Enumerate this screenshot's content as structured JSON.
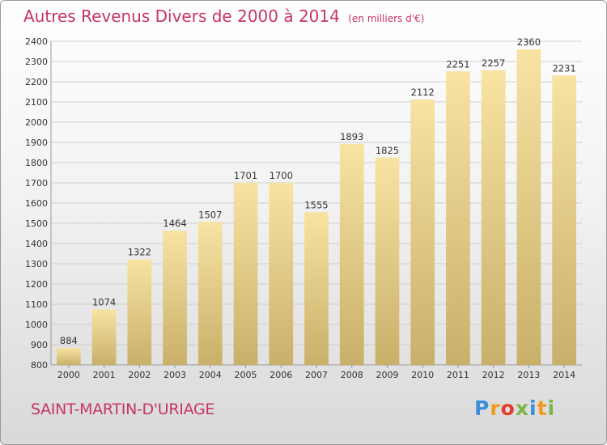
{
  "header": {
    "title": "Autres Revenus Divers de 2000 à 2014",
    "subtitle": "(en milliers d'€)"
  },
  "footer": {
    "location": "SAINT-MARTIN-D'URIAGE",
    "brand": {
      "letters": [
        "P",
        "r",
        "o",
        "x",
        "i",
        "t",
        "i"
      ],
      "colors": [
        "#3a8fd8",
        "#f39a1e",
        "#e53b2c",
        "#7ab648",
        "#3a8fd8",
        "#f39a1e",
        "#7ab648"
      ]
    }
  },
  "colors": {
    "title": "#c8336a",
    "bar_top": "#f8e3a3",
    "bar_bottom": "#c9b06a",
    "grid": "#cfcfcf",
    "axis_text": "#333333"
  },
  "chart_data": {
    "type": "bar",
    "categories": [
      "2000",
      "2001",
      "2002",
      "2003",
      "2004",
      "2005",
      "2006",
      "2007",
      "2008",
      "2009",
      "2010",
      "2011",
      "2012",
      "2013",
      "2014"
    ],
    "values": [
      884,
      1074,
      1322,
      1464,
      1507,
      1701,
      1700,
      1555,
      1893,
      1825,
      2112,
      2251,
      2257,
      2360,
      2231
    ],
    "title": "Autres Revenus Divers de 2000 à 2014",
    "xlabel": "",
    "ylabel": "",
    "ylim": [
      800,
      2400
    ],
    "yticks": [
      800,
      900,
      1000,
      1100,
      1200,
      1300,
      1400,
      1500,
      1600,
      1700,
      1800,
      1900,
      2000,
      2100,
      2200,
      2300,
      2400
    ],
    "grid": true,
    "data_labels": true
  }
}
